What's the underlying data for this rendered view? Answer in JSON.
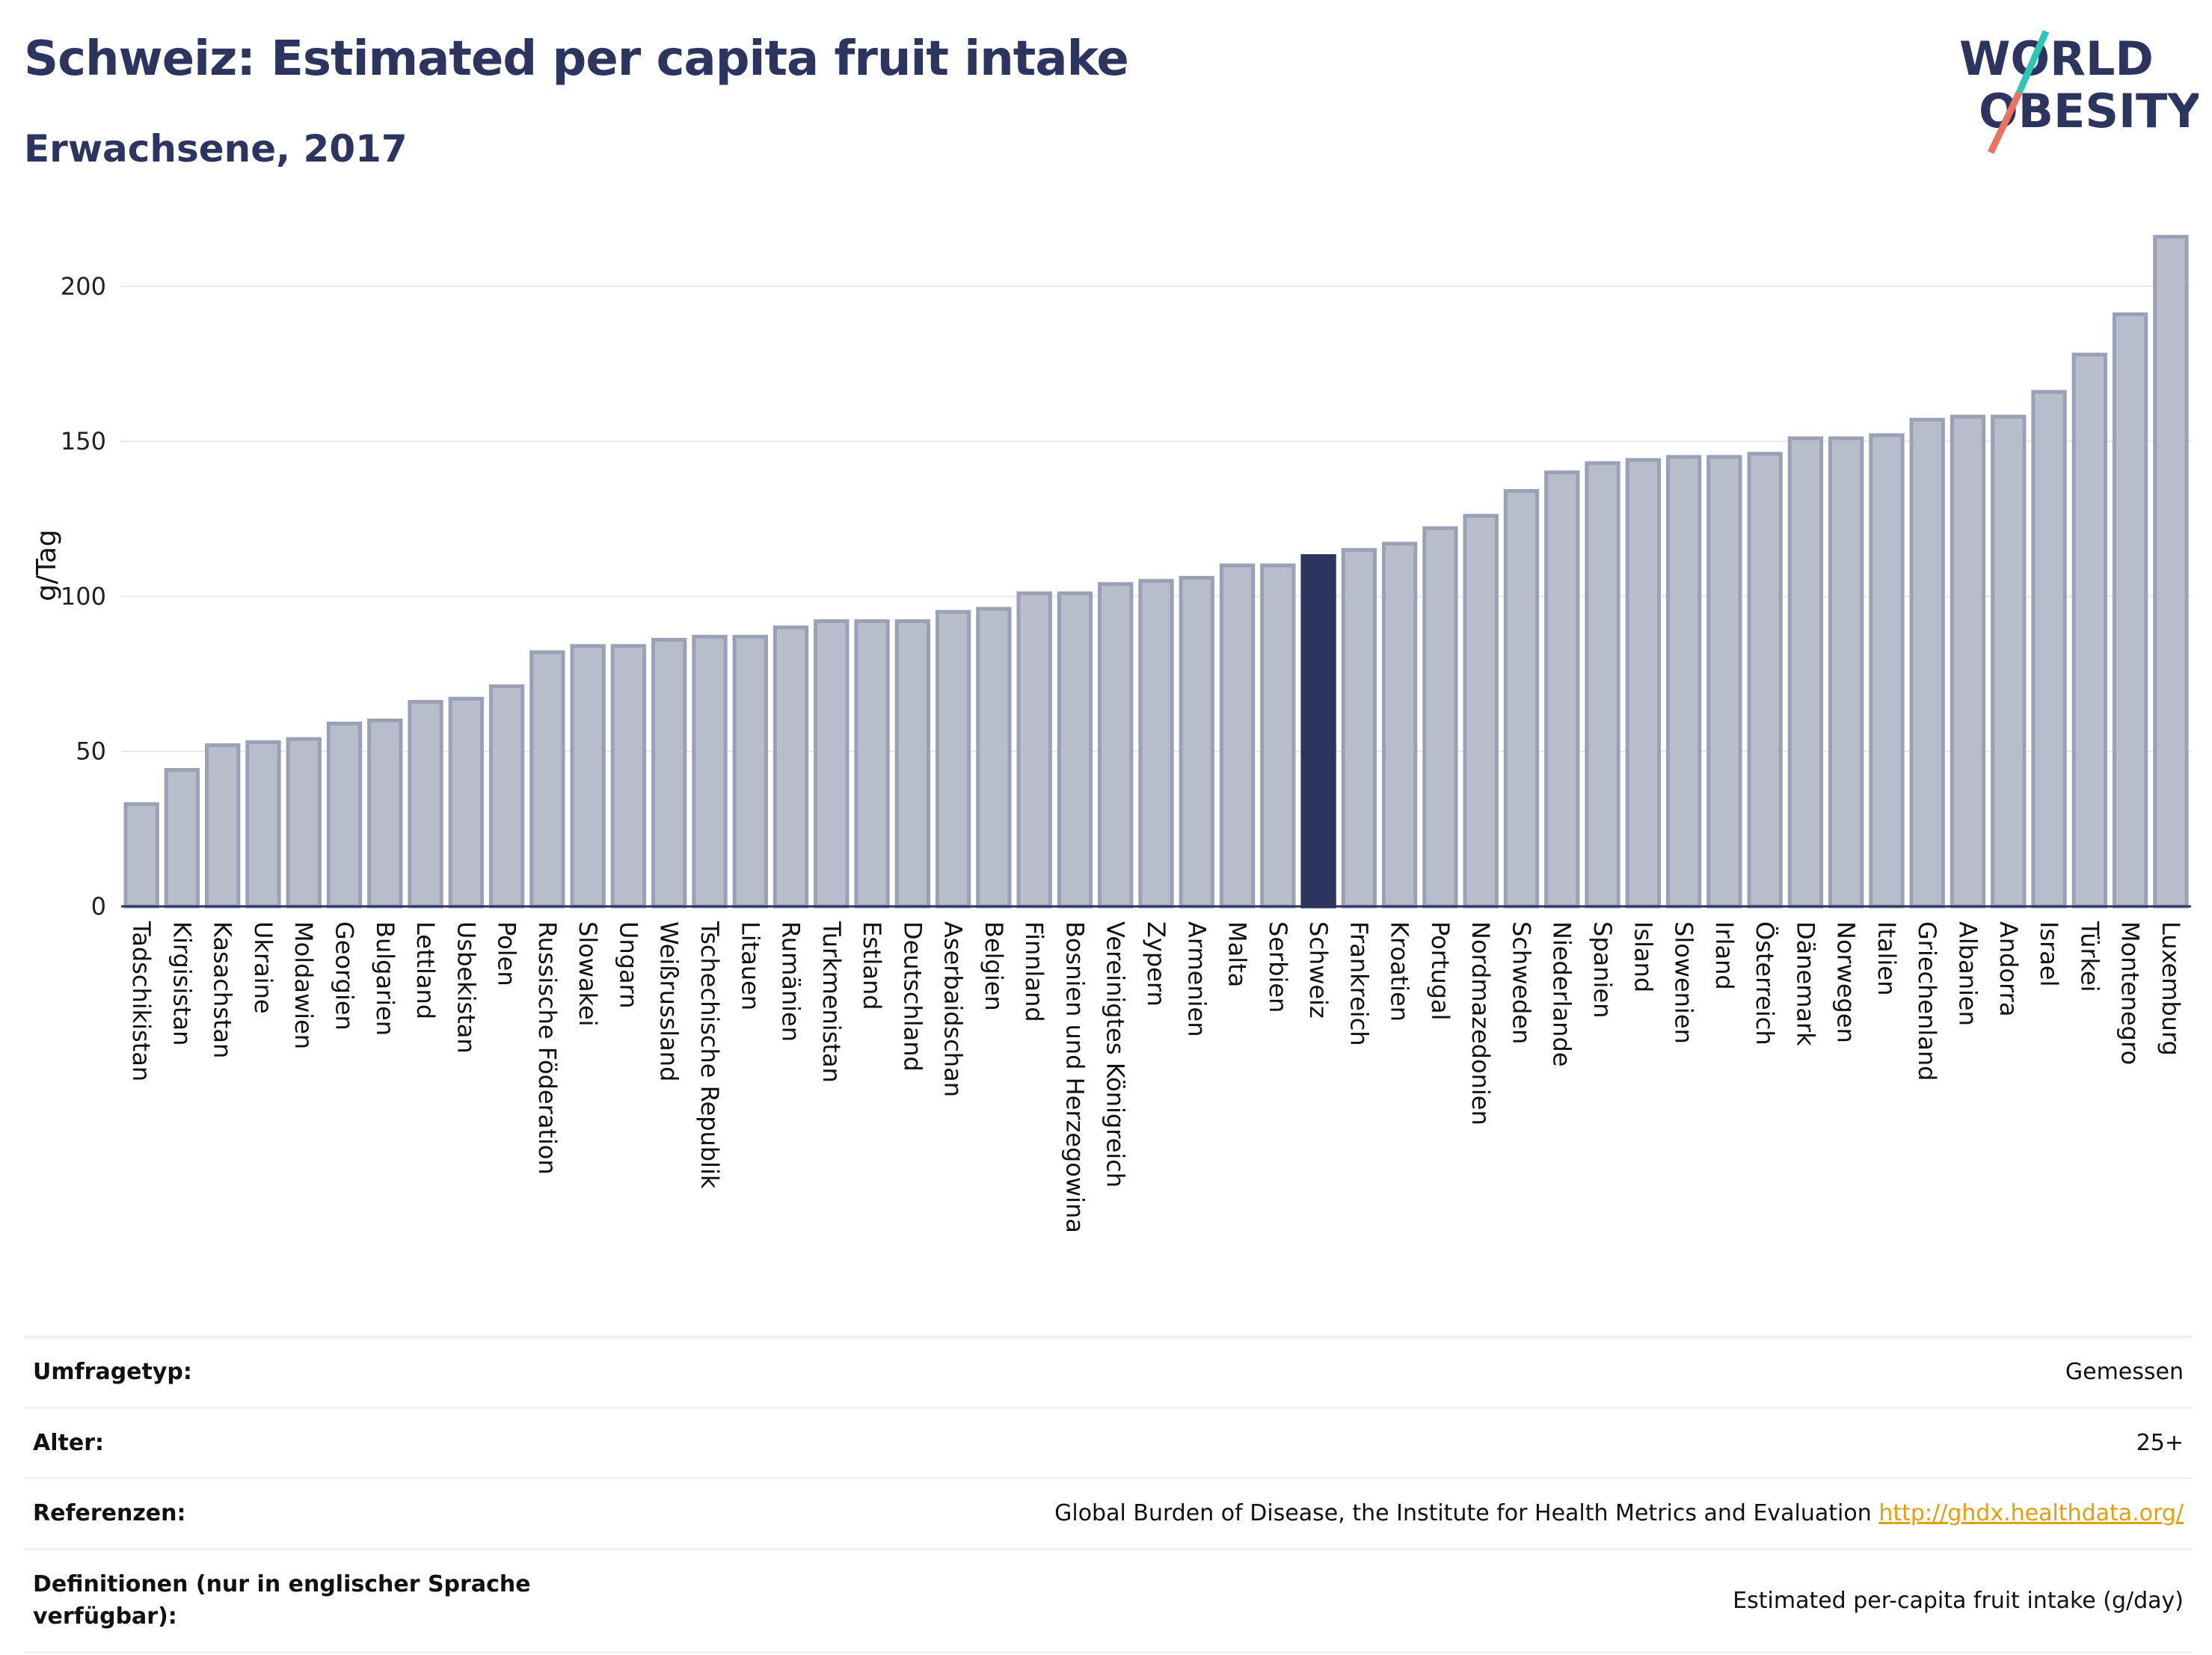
{
  "header": {
    "title": "Schweiz: Estimated per capita fruit intake",
    "subtitle": "Erwachsene, 2017"
  },
  "logo": {
    "line1": "WORLD",
    "line2": "OBESITY"
  },
  "colors": {
    "bar": "#b8bdcc",
    "bar_stroke": "#9aa0b6",
    "highlight": "#2b3560",
    "text": "#2b3560",
    "accent_teal": "#2ec4b6",
    "accent_coral": "#e9735f"
  },
  "chart_data": {
    "type": "bar",
    "ylabel": "g/Tag",
    "ylim": [
      0,
      220
    ],
    "yticks": [
      0,
      50,
      100,
      150,
      200
    ],
    "grid": true,
    "highlight": "Schweiz",
    "categories": [
      "Tadschikistan",
      "Kirgisistan",
      "Kasachstan",
      "Ukraine",
      "Moldawien",
      "Georgien",
      "Bulgarien",
      "Lettland",
      "Usbekistan",
      "Polen",
      "Russische Föderation",
      "Slowakei",
      "Ungarn",
      "Weißrussland",
      "Tschechische Republik",
      "Litauen",
      "Rumänien",
      "Turkmenistan",
      "Estland",
      "Deutschland",
      "Aserbaidschan",
      "Belgien",
      "Finnland",
      "Bosnien und Herzegowina",
      "Vereinigtes Königreich",
      "Zypern",
      "Armenien",
      "Malta",
      "Serbien",
      "Schweiz",
      "Frankreich",
      "Kroatien",
      "Portugal",
      "Nordmazedonien",
      "Schweden",
      "Niederlande",
      "Spanien",
      "Island",
      "Slowenien",
      "Irland",
      "Österreich",
      "Dänemark",
      "Norwegen",
      "Italien",
      "Griechenland",
      "Albanien",
      "Andorra",
      "Israel",
      "Türkei",
      "Montenegro",
      "Luxemburg"
    ],
    "values": [
      33,
      44,
      52,
      53,
      54,
      59,
      60,
      66,
      67,
      71,
      82,
      84,
      84,
      86,
      87,
      87,
      90,
      92,
      92,
      92,
      95,
      96,
      101,
      101,
      104,
      105,
      106,
      110,
      110,
      113,
      115,
      117,
      122,
      126,
      134,
      140,
      143,
      144,
      145,
      145,
      146,
      151,
      151,
      152,
      157,
      158,
      158,
      166,
      178,
      191,
      216
    ]
  },
  "info": [
    {
      "label": "Umfragetyp:",
      "value": "Gemessen"
    },
    {
      "label": "Alter:",
      "value": "25+"
    },
    {
      "label": "Referenzen:",
      "value": "Global Burden of Disease, the Institute for Health Metrics and Evaluation",
      "link": "http://ghdx.healthdata.org/"
    },
    {
      "label": "Definitionen (nur in englischer Sprache verfügbar):",
      "value": "Estimated per-capita fruit intake (g/day)"
    }
  ]
}
